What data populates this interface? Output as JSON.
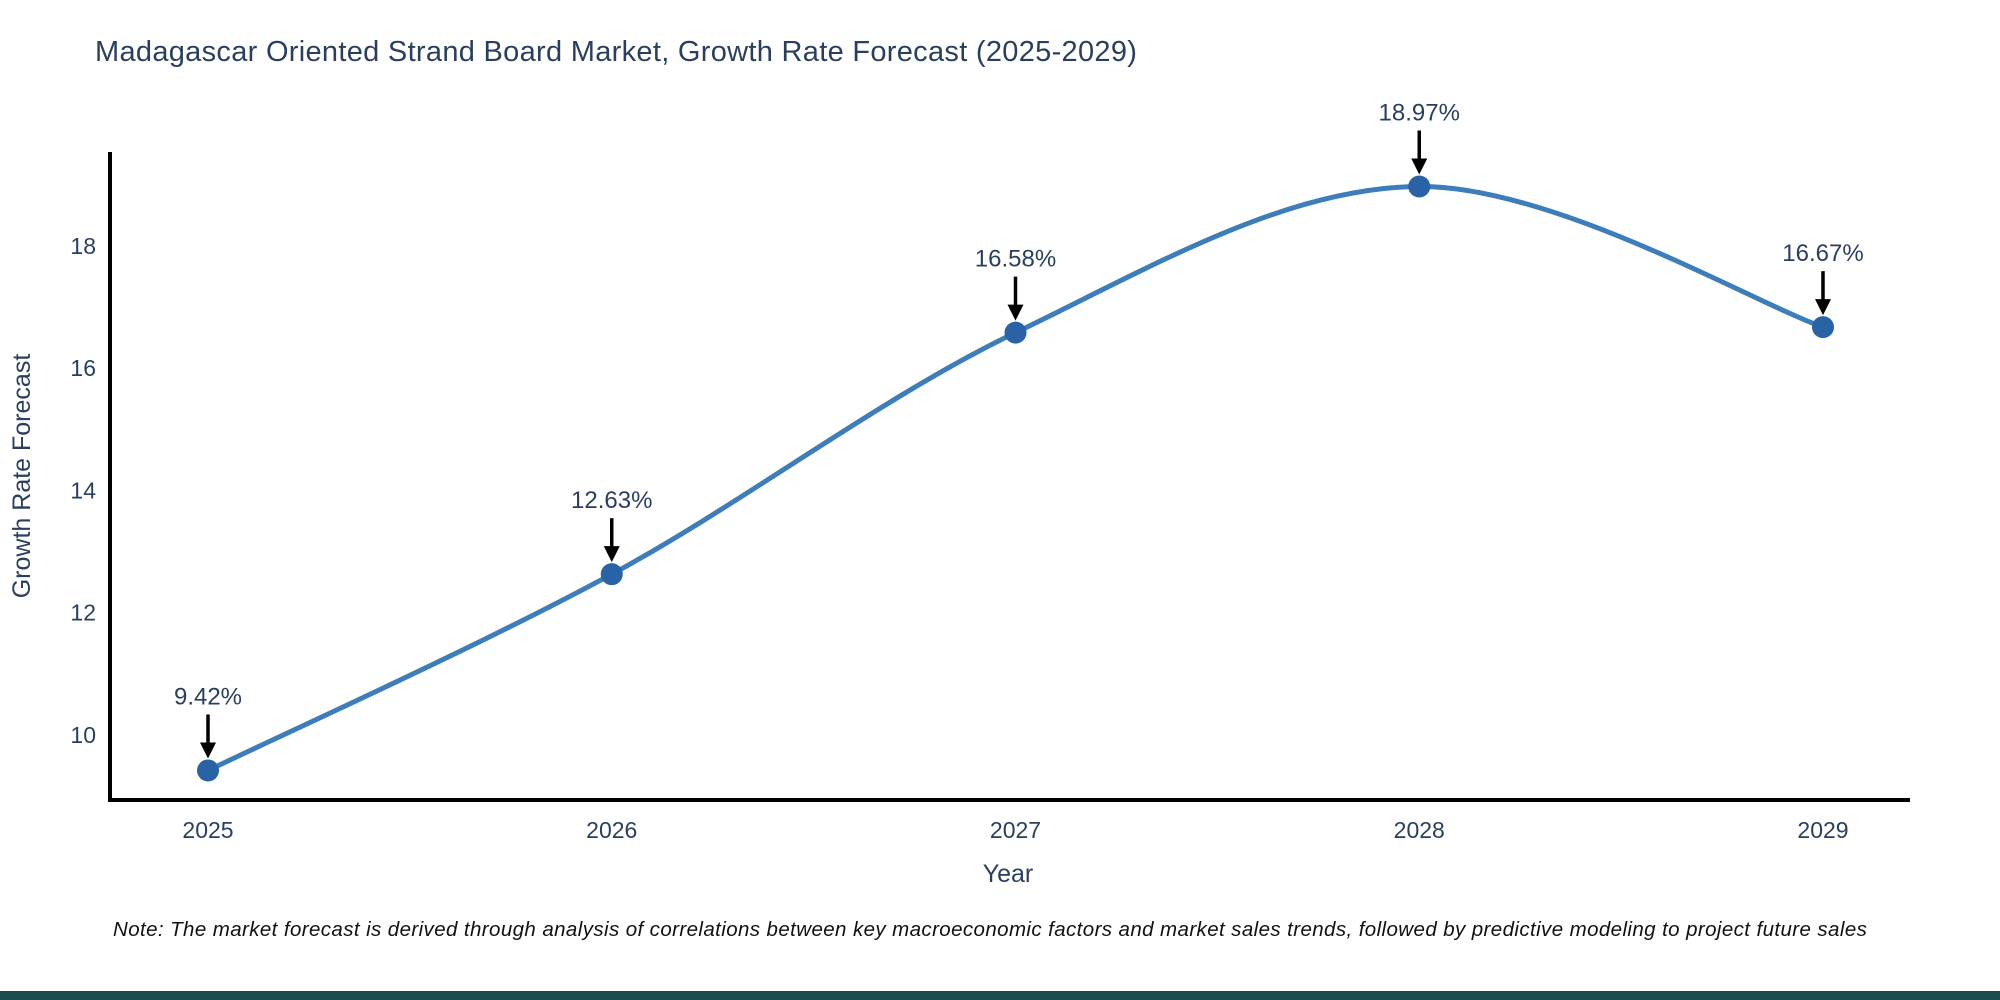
{
  "page": {
    "background": "#ffffff",
    "footer_bar_color": "#1b4d4e"
  },
  "chart_data": {
    "type": "line",
    "title": "Madagascar Oriented Strand Board Market, Growth Rate Forecast (2025-2029)",
    "xlabel": "Year",
    "ylabel": "Growth Rate Forecast",
    "x": [
      "2025",
      "2026",
      "2027",
      "2028",
      "2029"
    ],
    "values": [
      9.42,
      12.63,
      16.58,
      18.97,
      16.67
    ],
    "point_labels": [
      "9.42%",
      "12.63%",
      "16.58%",
      "18.97%",
      "16.67%"
    ],
    "yticks": [
      "10",
      "12",
      "14",
      "16",
      "18"
    ],
    "ylim": [
      8.94,
      19.45
    ],
    "xlim": [
      2024.76,
      2029.24
    ],
    "line_shape": "spline",
    "grid": false,
    "legend": "none",
    "colors": {
      "line": "#3d7dba",
      "marker": "#2a63a5",
      "axis": "#000000",
      "text": "#2a3f5f",
      "annotation": "#2a3f5f",
      "arrow": "#000000"
    }
  },
  "note": "Note: The market forecast is derived through analysis of correlations between key macroeconomic factors and market sales trends, followed by predictive modeling to project future sales"
}
